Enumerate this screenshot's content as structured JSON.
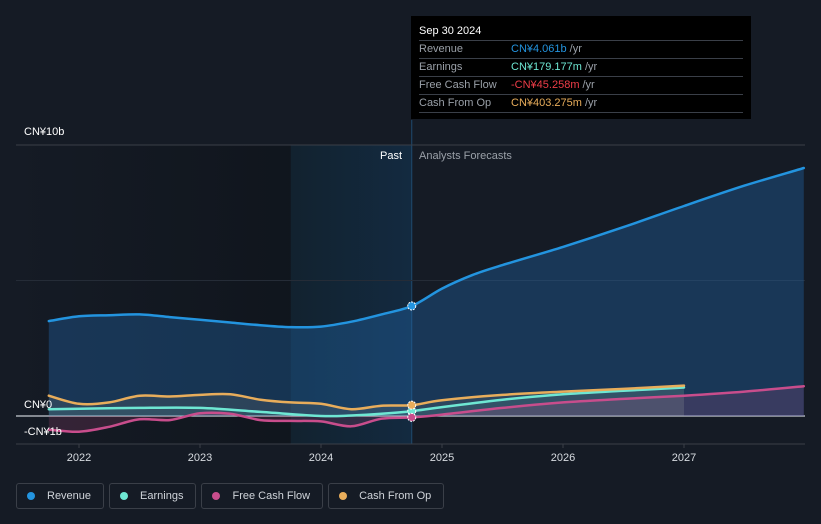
{
  "tooltip": {
    "date": "Sep 30 2024",
    "rows": [
      {
        "label": "Revenue",
        "value": "CN¥4.061b",
        "unit": "/yr",
        "color": "#2394df"
      },
      {
        "label": "Earnings",
        "value": "CN¥179.177m",
        "unit": "/yr",
        "color": "#6ee7d3"
      },
      {
        "label": "Free Cash Flow",
        "value": "-CN¥45.258m",
        "unit": "/yr",
        "color": "#ee3d48"
      },
      {
        "label": "Cash From Op",
        "value": "CN¥403.275m",
        "unit": "/yr",
        "color": "#e8ad5b"
      }
    ]
  },
  "region_labels": {
    "past": "Past",
    "forecast": "Analysts Forecasts"
  },
  "legend": [
    {
      "label": "Revenue",
      "color": "#2394df"
    },
    {
      "label": "Earnings",
      "color": "#6ee7d3"
    },
    {
      "label": "Free Cash Flow",
      "color": "#c84d8c"
    },
    {
      "label": "Cash From Op",
      "color": "#e8ad5b"
    }
  ],
  "chart_data": {
    "type": "line",
    "title": "",
    "xlabel": "",
    "ylabel": "",
    "y_tick_labels": [
      "CN¥10b",
      "CN¥0",
      "-CN¥1b"
    ],
    "y_ticks": [
      10,
      0,
      -1
    ],
    "ylim": [
      -1,
      10
    ],
    "xlim": [
      2021.5,
      2028.0
    ],
    "x_tick_labels": [
      "2022",
      "2023",
      "2024",
      "2025",
      "2026",
      "2027"
    ],
    "x_ticks": [
      2022,
      2023,
      2024,
      2025,
      2026,
      2027
    ],
    "past_forecast_split": 2024.75,
    "highlight_band_start": 2023.75,
    "grid": true,
    "legend_position": "bottom-left",
    "units": "CN¥ billions per year",
    "series": [
      {
        "name": "Revenue",
        "color": "#2394df",
        "x": [
          2021.75,
          2022.0,
          2022.25,
          2022.5,
          2022.75,
          2023.0,
          2023.25,
          2023.5,
          2023.75,
          2024.0,
          2024.25,
          2024.5,
          2024.75,
          2025.0,
          2025.25,
          2025.5,
          2026.0,
          2026.5,
          2027.0,
          2027.5,
          2027.99
        ],
        "values": [
          3.5,
          3.68,
          3.72,
          3.75,
          3.65,
          3.55,
          3.45,
          3.35,
          3.28,
          3.3,
          3.48,
          3.75,
          4.06,
          4.7,
          5.2,
          5.57,
          6.24,
          6.97,
          7.75,
          8.5,
          9.15
        ]
      },
      {
        "name": "Earnings",
        "color": "#6ee7d3",
        "x": [
          2021.75,
          2022.0,
          2022.5,
          2023.0,
          2023.5,
          2024.0,
          2024.25,
          2024.5,
          2024.75,
          2025.0,
          2025.5,
          2026.0,
          2026.5,
          2027.0
        ],
        "values": [
          0.25,
          0.27,
          0.3,
          0.3,
          0.15,
          0.0,
          0.02,
          0.08,
          0.18,
          0.33,
          0.6,
          0.8,
          0.93,
          1.05
        ]
      },
      {
        "name": "Free Cash Flow",
        "color": "#c84d8c",
        "x": [
          2021.75,
          2022.0,
          2022.25,
          2022.5,
          2022.75,
          2023.0,
          2023.25,
          2023.5,
          2023.75,
          2024.0,
          2024.25,
          2024.5,
          2024.75,
          2025.0,
          2025.5,
          2026.0,
          2026.5,
          2027.0,
          2027.5,
          2027.99
        ],
        "values": [
          -0.5,
          -0.58,
          -0.4,
          -0.12,
          -0.15,
          0.1,
          0.08,
          -0.15,
          -0.18,
          -0.2,
          -0.38,
          -0.1,
          -0.05,
          0.05,
          0.3,
          0.5,
          0.63,
          0.75,
          0.9,
          1.1
        ]
      },
      {
        "name": "Cash From Op",
        "color": "#e8ad5b",
        "x": [
          2021.75,
          2022.0,
          2022.25,
          2022.5,
          2022.75,
          2023.0,
          2023.25,
          2023.5,
          2023.75,
          2024.0,
          2024.25,
          2024.5,
          2024.75,
          2025.0,
          2025.5,
          2026.0,
          2026.5,
          2027.0
        ],
        "values": [
          0.75,
          0.45,
          0.5,
          0.75,
          0.72,
          0.78,
          0.8,
          0.6,
          0.5,
          0.45,
          0.25,
          0.38,
          0.4,
          0.58,
          0.78,
          0.9,
          1.0,
          1.12
        ]
      }
    ]
  }
}
